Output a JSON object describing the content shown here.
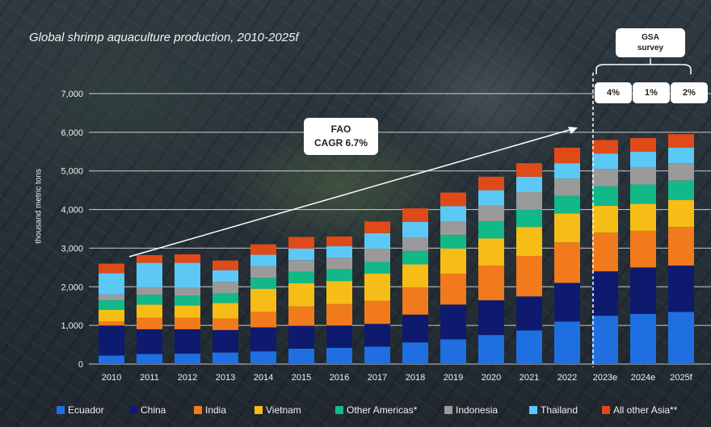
{
  "subtitle": "Global shrimp aquaculture production, 2010-2025f",
  "fao_callout": {
    "line1": "FAO",
    "line2": "CAGR 6.7%"
  },
  "gsa_callout": {
    "line1": "GSA",
    "line2": "survey"
  },
  "gsa_growth": [
    "4%",
    "1%",
    "2%"
  ],
  "chart_data": {
    "type": "bar",
    "stacked": true,
    "title": "Global shrimp aquaculture production, 2010-2025f",
    "xlabel": "",
    "ylabel": "thousand metric tons",
    "ylim": [
      0,
      7000
    ],
    "yticks": [
      0,
      1000,
      2000,
      3000,
      4000,
      5000,
      6000,
      7000
    ],
    "ytick_labels": [
      "0",
      "1,000",
      "2,000",
      "3,000",
      "4,000",
      "5,000",
      "6,000",
      "7,000"
    ],
    "categories": [
      "2010",
      "2011",
      "2012",
      "2013",
      "2014",
      "2015",
      "2016",
      "2017",
      "2018",
      "2019",
      "2020",
      "2021",
      "2022",
      "2023e",
      "2024e",
      "2025f"
    ],
    "grid": "horizontal",
    "legend_position": "bottom",
    "series": [
      {
        "name": "Ecuador",
        "color": "#1f6fe0",
        "values": [
          220,
          260,
          270,
          300,
          330,
          400,
          420,
          450,
          560,
          640,
          750,
          870,
          1100,
          1250,
          1300,
          1350
        ]
      },
      {
        "name": "China",
        "color": "#0d1a6e",
        "values": [
          780,
          640,
          630,
          580,
          620,
          590,
          580,
          590,
          720,
          900,
          900,
          880,
          1000,
          1150,
          1200,
          1200
        ]
      },
      {
        "name": "India",
        "color": "#f07a1c",
        "values": [
          100,
          300,
          300,
          300,
          400,
          500,
          550,
          600,
          700,
          800,
          900,
          1050,
          1050,
          1000,
          950,
          1000
        ]
      },
      {
        "name": "Vietnam",
        "color": "#f6bd16",
        "values": [
          300,
          340,
          320,
          400,
          600,
          600,
          600,
          700,
          600,
          650,
          700,
          750,
          750,
          700,
          700,
          700
        ]
      },
      {
        "name": "Other Americas*",
        "color": "#12b887",
        "values": [
          250,
          250,
          250,
          250,
          280,
          300,
          300,
          300,
          350,
          350,
          450,
          450,
          450,
          500,
          500,
          500
        ]
      },
      {
        "name": "Indonesia",
        "color": "#9a9a9a",
        "values": [
          150,
          200,
          200,
          300,
          300,
          300,
          300,
          350,
          350,
          350,
          400,
          450,
          450,
          450,
          450,
          450
        ]
      },
      {
        "name": "Thailand",
        "color": "#5cc8f5",
        "values": [
          550,
          630,
          650,
          300,
          300,
          300,
          300,
          400,
          400,
          400,
          400,
          400,
          400,
          400,
          400,
          400
        ]
      },
      {
        "name": "All other Asia**",
        "color": "#e04a18",
        "values": [
          250,
          200,
          220,
          250,
          270,
          300,
          250,
          300,
          350,
          350,
          350,
          350,
          400,
          350,
          350,
          350
        ]
      }
    ],
    "annotations": [
      "FAO CAGR 6.7%",
      "GSA survey",
      "4%",
      "1%",
      "2%"
    ]
  }
}
